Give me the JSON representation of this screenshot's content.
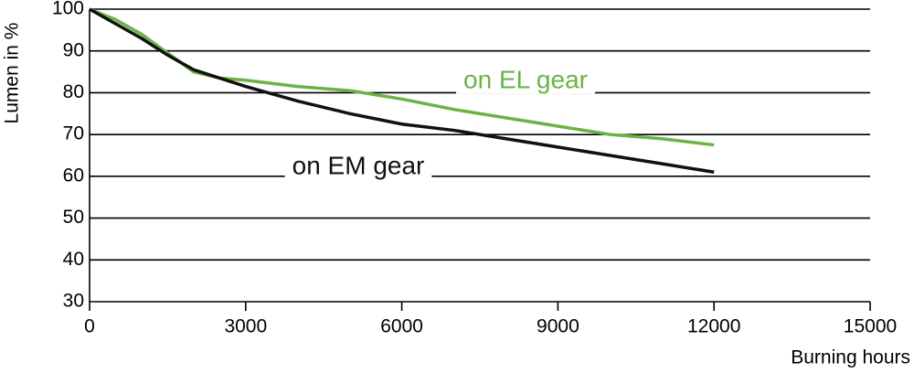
{
  "chart_data": {
    "type": "line",
    "y_label": "Lumen in %",
    "x_label": "Burning hours",
    "annotations": [
      "on EL gear",
      "on EM gear"
    ],
    "series": [
      {
        "name": "EL gear",
        "color": "#6ab446",
        "x": [
          0,
          500,
          1000,
          1500,
          2000,
          2500,
          3000,
          4000,
          4500,
          5000,
          6000,
          7000,
          8000,
          9000,
          10000,
          11000,
          12000
        ],
        "values": [
          100,
          97.5,
          94,
          89.5,
          85,
          83.5,
          83,
          81.5,
          81,
          80.5,
          78.5,
          76,
          74,
          72,
          70,
          69,
          67.5
        ]
      },
      {
        "name": "EM gear",
        "color": "#111111",
        "x": [
          0,
          500,
          1000,
          1500,
          2000,
          2500,
          3000,
          4000,
          5000,
          6000,
          7000,
          8000,
          9000,
          10000,
          11000,
          12000
        ],
        "values": [
          100,
          96.5,
          93,
          89,
          85.5,
          83.5,
          81.5,
          78,
          75,
          72.5,
          71,
          69,
          67,
          65,
          63,
          61
        ]
      }
    ],
    "xlim": [
      0,
      15000
    ],
    "xticks": [
      0,
      3000,
      6000,
      9000,
      12000,
      15000
    ],
    "ylim": [
      30,
      100
    ],
    "yticks": [
      30,
      40,
      50,
      60,
      70,
      80,
      90,
      100
    ],
    "grid": true
  }
}
